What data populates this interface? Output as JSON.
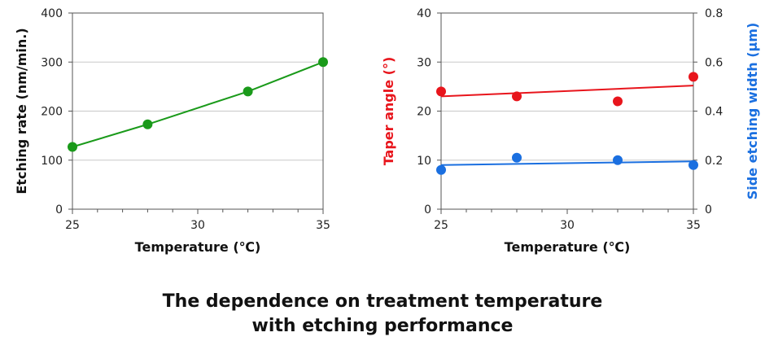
{
  "caption": {
    "line1": "The dependence on treatment temperature",
    "line2": "with etching performance"
  },
  "chart_data": [
    {
      "type": "line",
      "title": "",
      "xlabel": "Temperature (℃)",
      "ylabel": "Etching rate (nm/min.)",
      "xlim": [
        25,
        35
      ],
      "ylim": [
        0,
        400
      ],
      "xticks": [
        25,
        30,
        35
      ],
      "yticks": [
        0,
        100,
        200,
        300,
        400
      ],
      "grid": true,
      "legend": "none",
      "series": [
        {
          "color": "#1a9a1a",
          "x": [
            25,
            28,
            32,
            35
          ],
          "y": [
            127,
            173,
            240,
            300
          ]
        }
      ]
    },
    {
      "type": "scatter",
      "title": "",
      "xlabel": "Temperature (℃)",
      "ylabel": "Taper angle (°)",
      "y2label": "Side etching width (μm)",
      "xlim": [
        25,
        35
      ],
      "ylim": [
        0,
        40
      ],
      "y2lim": [
        0,
        0.8
      ],
      "xticks": [
        25,
        30,
        35
      ],
      "yticks": [
        0,
        10,
        20,
        30,
        40
      ],
      "y2ticks": [
        0,
        0.2,
        0.4,
        0.6,
        0.8
      ],
      "grid": true,
      "legend": "none",
      "series": [
        {
          "axis": "left",
          "color": "#e8151c",
          "x": [
            25,
            28,
            32,
            35
          ],
          "y": [
            24,
            23,
            22,
            27
          ],
          "trend": [
            23,
            25.2
          ]
        },
        {
          "axis": "right",
          "color": "#1a6fe0",
          "x": [
            25,
            28,
            32,
            35
          ],
          "y": [
            0.16,
            0.21,
            0.2,
            0.18
          ],
          "trend": [
            0.18,
            0.195
          ]
        }
      ]
    }
  ]
}
